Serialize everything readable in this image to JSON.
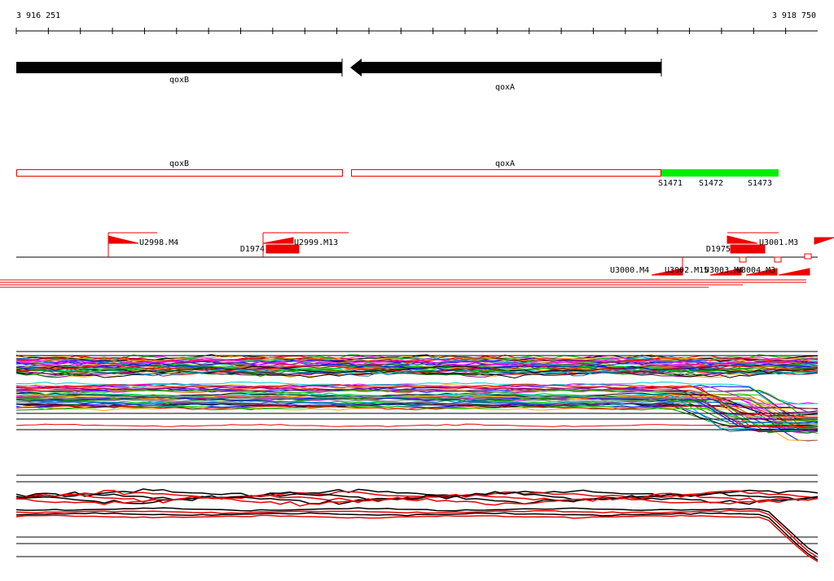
{
  "ruler": {
    "start": "3 916 251",
    "end": "3 918 750"
  },
  "genes": [
    {
      "label": "qoxB"
    },
    {
      "label": "qoxA"
    }
  ],
  "segments": {
    "genes": [
      {
        "label": "qoxB"
      },
      {
        "label": "qoxA"
      }
    ],
    "sites": [
      {
        "label": "S1471"
      },
      {
        "label": "S1472"
      },
      {
        "label": "S1473"
      }
    ]
  },
  "features": [
    {
      "label": "U2998.M4"
    },
    {
      "label": "U2999.M13"
    },
    {
      "label": "D1974"
    },
    {
      "label": "D1975"
    },
    {
      "label": "U3001.M3"
    },
    {
      "label": "U3000.M4"
    },
    {
      "label": "U3002.M15"
    },
    {
      "label": "U3003.M4"
    },
    {
      "label": "U3004.M3"
    }
  ]
}
